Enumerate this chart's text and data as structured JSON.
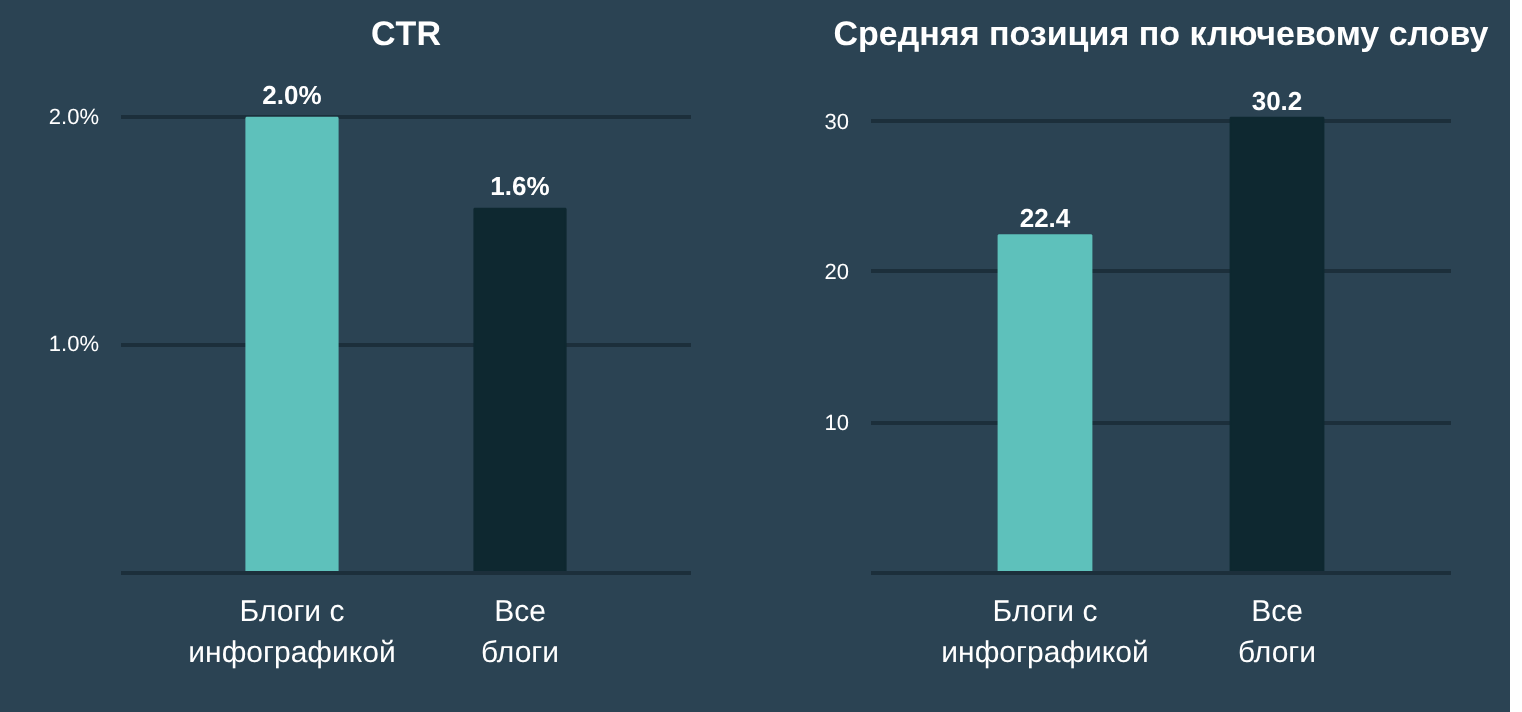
{
  "chart_data": [
    {
      "type": "bar",
      "title": "CTR",
      "categories": [
        "Блоги с\nинфографикой",
        "Все\nблоги"
      ],
      "values": [
        2.0,
        1.6
      ],
      "colors": [
        "#5ec1bb",
        "#0e2830"
      ],
      "value_labels": [
        "2.0%",
        "1.6%"
      ],
      "ylim": [
        0,
        2.0
      ],
      "yticks": [
        {
          "value": 1,
          "label": "1.0%"
        },
        {
          "value": 2,
          "label": "2.0%"
        }
      ],
      "grid": "y"
    },
    {
      "type": "bar",
      "title": "Средняя позиция по ключевому слову",
      "categories": [
        "Блоги с\nинфографикой",
        "Все\nблоги"
      ],
      "values": [
        22.4,
        30.2
      ],
      "colors": [
        "#5ec1bb",
        "#0e2830"
      ],
      "data_labels": true,
      "ylim": [
        0,
        30.2
      ],
      "yticks": [
        10,
        20,
        30
      ],
      "grid": "y"
    }
  ]
}
